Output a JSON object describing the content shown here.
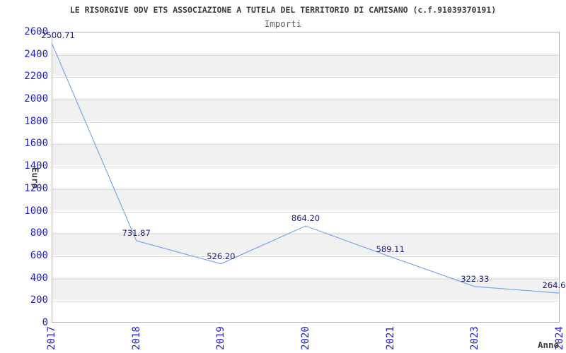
{
  "header": {
    "title": "LE RISORGIVE ODV ETS ASSOCIAZIONE A TUTELA DEL TERRITORIO DI CAMISANO (c.f.91039370191)",
    "subtitle": "Importi"
  },
  "axes": {
    "x_label": "Anno",
    "y_label": "Euro",
    "y_ticks": [
      0,
      200,
      400,
      600,
      800,
      1000,
      1200,
      1400,
      1600,
      1800,
      2000,
      2200,
      2400,
      2600
    ]
  },
  "chart_data": {
    "type": "line",
    "title": "Importi",
    "xlabel": "Anno",
    "ylabel": "Euro",
    "x": [
      "2017",
      "2018",
      "2019",
      "2020",
      "2021",
      "2023",
      "2024"
    ],
    "values": [
      2500.71,
      731.87,
      526.2,
      864.2,
      589.11,
      322.33,
      264.6
    ],
    "point_labels": [
      "2500.71",
      "731.87",
      "526.20",
      "864.20",
      "589.11",
      "322.33",
      "264.6"
    ],
    "ylim": [
      0,
      2600
    ],
    "y_tick_step": 200,
    "grid": "horizontal",
    "legend": "none",
    "band_pattern": "alternating horizontal bands every 200 units"
  },
  "colors": {
    "line": "#7aa5e8",
    "tick_label": "#2222cc",
    "point_label": "#1c1c78",
    "band_gray": "#f1f1f1",
    "band_white": "#ffffff",
    "gridline": "#dcdcdc",
    "frame": "#b5b5b5",
    "title_text": "#3d3d3d"
  }
}
